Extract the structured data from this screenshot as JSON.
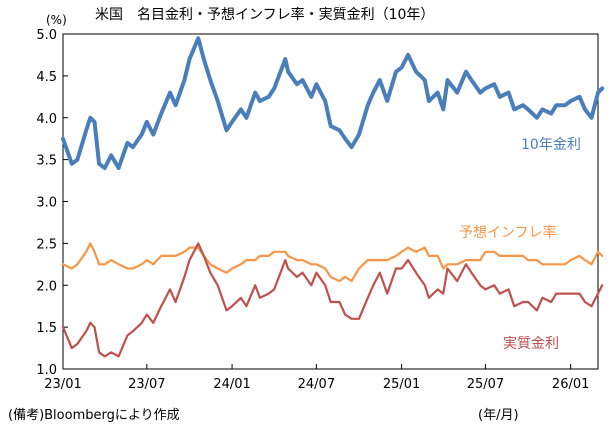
{
  "chart_data": {
    "type": "line",
    "title": "米国　名目金利・予想インフレ率・実質金利（10年）",
    "y_unit": "(%)",
    "x_unit": "(年/月)",
    "source_note": "(備考)Bloombergにより作成",
    "xlabel": "",
    "ylabel": "",
    "ylim": [
      1.0,
      5.0
    ],
    "y_ticks": [
      "1.0",
      "1.5",
      "2.0",
      "2.5",
      "3.0",
      "3.5",
      "4.0",
      "4.5",
      "5.0"
    ],
    "x_range": [
      "2023-01",
      "2026-03"
    ],
    "x_ticks": [
      "23/01",
      "23/07",
      "24/01",
      "24/07",
      "25/01",
      "25/07",
      "26/01"
    ],
    "grid": false,
    "legend": "inline-labels",
    "series": [
      {
        "name": "10年金利",
        "color": "#4a7ebb",
        "points": [
          [
            "2023-01",
            3.75
          ],
          [
            "2023-01-20",
            3.45
          ],
          [
            "2023-02",
            3.5
          ],
          [
            "2023-02-20",
            3.85
          ],
          [
            "2023-03",
            4.0
          ],
          [
            "2023-03-10",
            3.95
          ],
          [
            "2023-03-20",
            3.45
          ],
          [
            "2023-04",
            3.4
          ],
          [
            "2023-04-15",
            3.55
          ],
          [
            "2023-05",
            3.4
          ],
          [
            "2023-05-20",
            3.7
          ],
          [
            "2023-06",
            3.65
          ],
          [
            "2023-06-20",
            3.8
          ],
          [
            "2023-07",
            3.95
          ],
          [
            "2023-07-15",
            3.8
          ],
          [
            "2023-08",
            4.05
          ],
          [
            "2023-08-20",
            4.3
          ],
          [
            "2023-09",
            4.15
          ],
          [
            "2023-09-20",
            4.45
          ],
          [
            "2023-10",
            4.7
          ],
          [
            "2023-10-20",
            4.95
          ],
          [
            "2023-11",
            4.7
          ],
          [
            "2023-11-15",
            4.45
          ],
          [
            "2023-12",
            4.2
          ],
          [
            "2023-12-20",
            3.85
          ],
          [
            "2024-01",
            3.95
          ],
          [
            "2024-01-20",
            4.1
          ],
          [
            "2024-02",
            4.0
          ],
          [
            "2024-02-20",
            4.3
          ],
          [
            "2024-03",
            4.2
          ],
          [
            "2024-03-20",
            4.25
          ],
          [
            "2024-04",
            4.35
          ],
          [
            "2024-04-25",
            4.7
          ],
          [
            "2024-05",
            4.55
          ],
          [
            "2024-05-20",
            4.4
          ],
          [
            "2024-06",
            4.45
          ],
          [
            "2024-06-20",
            4.25
          ],
          [
            "2024-07",
            4.4
          ],
          [
            "2024-07-20",
            4.2
          ],
          [
            "2024-08",
            3.9
          ],
          [
            "2024-08-20",
            3.85
          ],
          [
            "2024-09",
            3.75
          ],
          [
            "2024-09-15",
            3.65
          ],
          [
            "2024-10",
            3.8
          ],
          [
            "2024-10-20",
            4.15
          ],
          [
            "2024-11",
            4.3
          ],
          [
            "2024-11-15",
            4.45
          ],
          [
            "2024-12",
            4.2
          ],
          [
            "2024-12-20",
            4.55
          ],
          [
            "2025-01",
            4.6
          ],
          [
            "2025-01-15",
            4.75
          ],
          [
            "2025-02",
            4.55
          ],
          [
            "2025-02-20",
            4.45
          ],
          [
            "2025-03",
            4.2
          ],
          [
            "2025-03-20",
            4.3
          ],
          [
            "2025-04",
            4.1
          ],
          [
            "2025-04-10",
            4.45
          ],
          [
            "2025-05",
            4.3
          ],
          [
            "2025-05-20",
            4.55
          ],
          [
            "2025-06",
            4.45
          ],
          [
            "2025-06-20",
            4.3
          ],
          [
            "2025-07",
            4.35
          ],
          [
            "2025-07-20",
            4.4
          ],
          [
            "2025-08",
            4.25
          ],
          [
            "2025-08-20",
            4.3
          ],
          [
            "2025-09",
            4.1
          ],
          [
            "2025-09-20",
            4.15
          ],
          [
            "2025-10",
            4.1
          ],
          [
            "2025-10-20",
            4.0
          ],
          [
            "2025-11",
            4.1
          ],
          [
            "2025-11-20",
            4.05
          ],
          [
            "2025-12",
            4.15
          ],
          [
            "2025-12-20",
            4.15
          ],
          [
            "2026-01",
            4.2
          ],
          [
            "2026-01-20",
            4.25
          ],
          [
            "2026-02",
            4.1
          ],
          [
            "2026-02-15",
            4.0
          ],
          [
            "2026-03",
            4.3
          ],
          [
            "2026-03-10",
            4.35
          ]
        ]
      },
      {
        "name": "予想インフレ率",
        "color": "#f79646",
        "points": [
          [
            "2023-01",
            2.25
          ],
          [
            "2023-01-20",
            2.2
          ],
          [
            "2023-02",
            2.25
          ],
          [
            "2023-02-20",
            2.4
          ],
          [
            "2023-03",
            2.5
          ],
          [
            "2023-03-10",
            2.4
          ],
          [
            "2023-03-20",
            2.25
          ],
          [
            "2023-04",
            2.25
          ],
          [
            "2023-04-15",
            2.3
          ],
          [
            "2023-05",
            2.25
          ],
          [
            "2023-05-20",
            2.2
          ],
          [
            "2023-06",
            2.2
          ],
          [
            "2023-06-20",
            2.25
          ],
          [
            "2023-07",
            2.3
          ],
          [
            "2023-07-15",
            2.25
          ],
          [
            "2023-08",
            2.35
          ],
          [
            "2023-08-20",
            2.35
          ],
          [
            "2023-09",
            2.35
          ],
          [
            "2023-09-20",
            2.4
          ],
          [
            "2023-10",
            2.45
          ],
          [
            "2023-10-20",
            2.45
          ],
          [
            "2023-11",
            2.35
          ],
          [
            "2023-11-15",
            2.25
          ],
          [
            "2023-12",
            2.2
          ],
          [
            "2023-12-20",
            2.15
          ],
          [
            "2024-01",
            2.2
          ],
          [
            "2024-01-20",
            2.25
          ],
          [
            "2024-02",
            2.3
          ],
          [
            "2024-02-20",
            2.3
          ],
          [
            "2024-03",
            2.35
          ],
          [
            "2024-03-20",
            2.35
          ],
          [
            "2024-04",
            2.4
          ],
          [
            "2024-04-25",
            2.4
          ],
          [
            "2024-05",
            2.35
          ],
          [
            "2024-05-20",
            2.3
          ],
          [
            "2024-06",
            2.3
          ],
          [
            "2024-06-20",
            2.25
          ],
          [
            "2024-07",
            2.25
          ],
          [
            "2024-07-20",
            2.2
          ],
          [
            "2024-08",
            2.1
          ],
          [
            "2024-08-20",
            2.05
          ],
          [
            "2024-09",
            2.1
          ],
          [
            "2024-09-15",
            2.05
          ],
          [
            "2024-10",
            2.2
          ],
          [
            "2024-10-20",
            2.3
          ],
          [
            "2024-11",
            2.3
          ],
          [
            "2024-11-15",
            2.3
          ],
          [
            "2024-12",
            2.3
          ],
          [
            "2024-12-20",
            2.35
          ],
          [
            "2025-01",
            2.4
          ],
          [
            "2025-01-15",
            2.45
          ],
          [
            "2025-02",
            2.4
          ],
          [
            "2025-02-20",
            2.45
          ],
          [
            "2025-03",
            2.35
          ],
          [
            "2025-03-20",
            2.35
          ],
          [
            "2025-04",
            2.2
          ],
          [
            "2025-04-10",
            2.25
          ],
          [
            "2025-05",
            2.25
          ],
          [
            "2025-05-20",
            2.3
          ],
          [
            "2025-06",
            2.3
          ],
          [
            "2025-06-20",
            2.3
          ],
          [
            "2025-07",
            2.4
          ],
          [
            "2025-07-20",
            2.4
          ],
          [
            "2025-08",
            2.35
          ],
          [
            "2025-08-20",
            2.35
          ],
          [
            "2025-09",
            2.35
          ],
          [
            "2025-09-20",
            2.35
          ],
          [
            "2025-10",
            2.3
          ],
          [
            "2025-10-20",
            2.3
          ],
          [
            "2025-11",
            2.25
          ],
          [
            "2025-11-20",
            2.25
          ],
          [
            "2025-12",
            2.25
          ],
          [
            "2025-12-20",
            2.25
          ],
          [
            "2026-01",
            2.3
          ],
          [
            "2026-01-20",
            2.35
          ],
          [
            "2026-02",
            2.3
          ],
          [
            "2026-02-15",
            2.25
          ],
          [
            "2026-03",
            2.4
          ],
          [
            "2026-03-10",
            2.35
          ]
        ]
      },
      {
        "name": "実質金利",
        "color": "#c0504d",
        "points": [
          [
            "2023-01",
            1.5
          ],
          [
            "2023-01-20",
            1.25
          ],
          [
            "2023-02",
            1.3
          ],
          [
            "2023-02-20",
            1.45
          ],
          [
            "2023-03",
            1.55
          ],
          [
            "2023-03-10",
            1.5
          ],
          [
            "2023-03-20",
            1.2
          ],
          [
            "2023-04",
            1.15
          ],
          [
            "2023-04-15",
            1.2
          ],
          [
            "2023-05",
            1.15
          ],
          [
            "2023-05-20",
            1.4
          ],
          [
            "2023-06",
            1.45
          ],
          [
            "2023-06-20",
            1.55
          ],
          [
            "2023-07",
            1.65
          ],
          [
            "2023-07-15",
            1.55
          ],
          [
            "2023-08",
            1.75
          ],
          [
            "2023-08-20",
            1.95
          ],
          [
            "2023-09",
            1.8
          ],
          [
            "2023-09-20",
            2.1
          ],
          [
            "2023-10",
            2.3
          ],
          [
            "2023-10-20",
            2.5
          ],
          [
            "2023-11",
            2.35
          ],
          [
            "2023-11-15",
            2.15
          ],
          [
            "2023-12",
            2.0
          ],
          [
            "2023-12-20",
            1.7
          ],
          [
            "2024-01",
            1.75
          ],
          [
            "2024-01-20",
            1.85
          ],
          [
            "2024-02",
            1.75
          ],
          [
            "2024-02-20",
            2.0
          ],
          [
            "2024-03",
            1.85
          ],
          [
            "2024-03-20",
            1.9
          ],
          [
            "2024-04",
            1.95
          ],
          [
            "2024-04-25",
            2.3
          ],
          [
            "2024-05",
            2.2
          ],
          [
            "2024-05-20",
            2.1
          ],
          [
            "2024-06",
            2.15
          ],
          [
            "2024-06-20",
            2.0
          ],
          [
            "2024-07",
            2.15
          ],
          [
            "2024-07-20",
            2.0
          ],
          [
            "2024-08",
            1.8
          ],
          [
            "2024-08-20",
            1.8
          ],
          [
            "2024-09",
            1.65
          ],
          [
            "2024-09-15",
            1.6
          ],
          [
            "2024-10",
            1.6
          ],
          [
            "2024-10-20",
            1.85
          ],
          [
            "2024-11",
            2.0
          ],
          [
            "2024-11-15",
            2.15
          ],
          [
            "2024-12",
            1.9
          ],
          [
            "2024-12-20",
            2.2
          ],
          [
            "2025-01",
            2.2
          ],
          [
            "2025-01-15",
            2.3
          ],
          [
            "2025-02",
            2.15
          ],
          [
            "2025-02-20",
            2.0
          ],
          [
            "2025-03",
            1.85
          ],
          [
            "2025-03-20",
            1.95
          ],
          [
            "2025-04",
            1.9
          ],
          [
            "2025-04-10",
            2.2
          ],
          [
            "2025-05",
            2.05
          ],
          [
            "2025-05-20",
            2.25
          ],
          [
            "2025-06",
            2.15
          ],
          [
            "2025-06-20",
            2.0
          ],
          [
            "2025-07",
            1.95
          ],
          [
            "2025-07-20",
            2.0
          ],
          [
            "2025-08",
            1.9
          ],
          [
            "2025-08-20",
            1.95
          ],
          [
            "2025-09",
            1.75
          ],
          [
            "2025-09-20",
            1.8
          ],
          [
            "2025-10",
            1.8
          ],
          [
            "2025-10-20",
            1.7
          ],
          [
            "2025-11",
            1.85
          ],
          [
            "2025-11-20",
            1.8
          ],
          [
            "2025-12",
            1.9
          ],
          [
            "2025-12-20",
            1.9
          ],
          [
            "2026-01",
            1.9
          ],
          [
            "2026-01-20",
            1.9
          ],
          [
            "2026-02",
            1.8
          ],
          [
            "2026-02-15",
            1.75
          ],
          [
            "2026-03",
            1.9
          ],
          [
            "2026-03-10",
            2.0
          ]
        ]
      }
    ]
  }
}
